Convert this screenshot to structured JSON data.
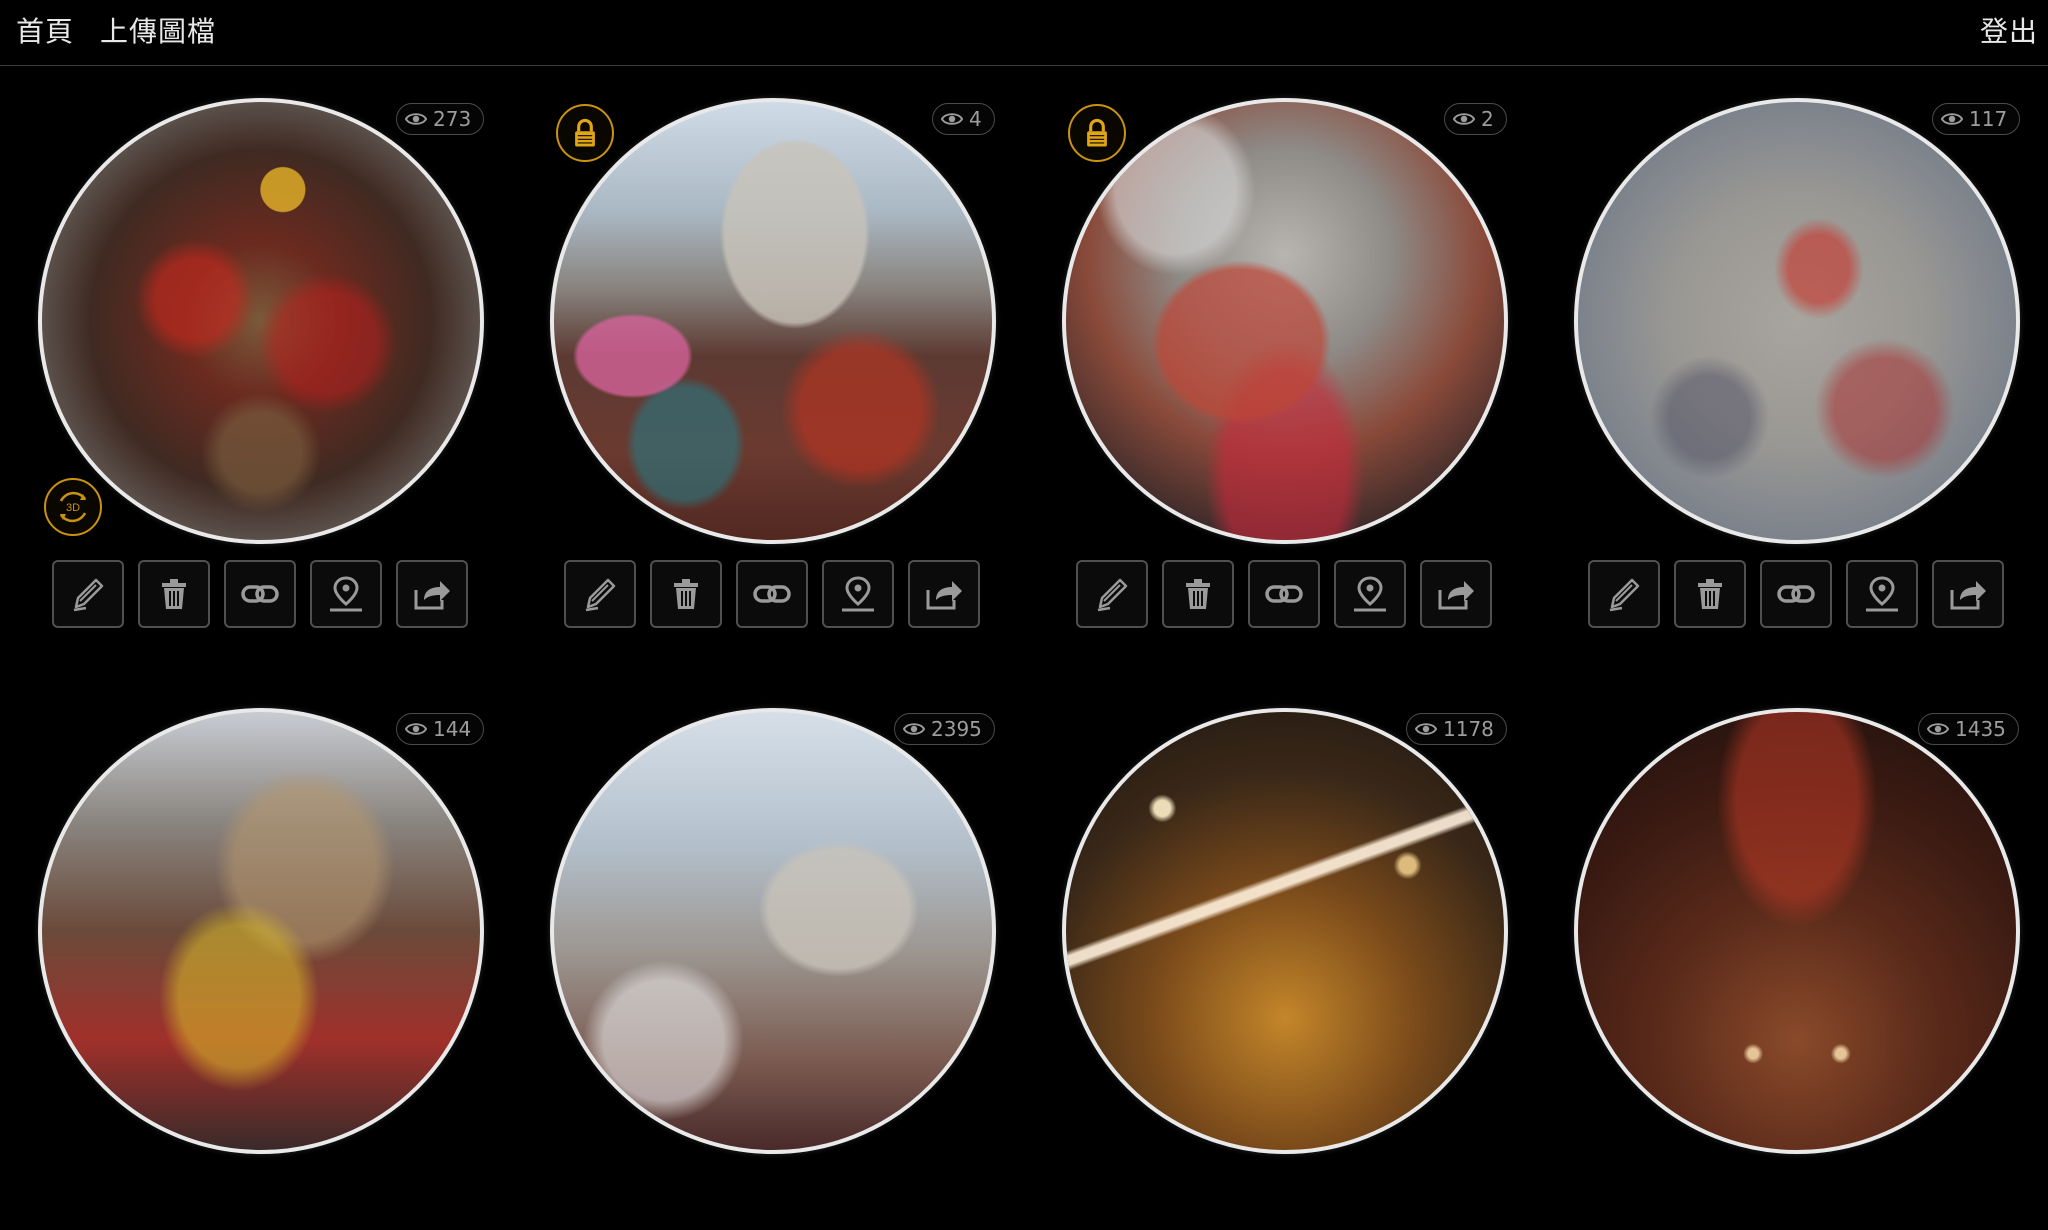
{
  "nav": {
    "home": "首頁",
    "upload": "上傳圖檔",
    "logout": "登出"
  },
  "photos": [
    {
      "views": "273",
      "locked": false,
      "is3d": true,
      "theme": "parade-topdown"
    },
    {
      "views": "4",
      "locked": true,
      "is3d": false,
      "theme": "street-buildings"
    },
    {
      "views": "2",
      "locked": true,
      "is3d": false,
      "theme": "firecracker-crowd"
    },
    {
      "views": "117",
      "locked": false,
      "is3d": false,
      "theme": "smoke-procession"
    },
    {
      "views": "144",
      "locked": false,
      "is3d": false,
      "theme": "temple-crowd"
    },
    {
      "views": "2395",
      "locked": false,
      "is3d": false,
      "theme": "street-smoke"
    },
    {
      "views": "1178",
      "locked": false,
      "is3d": false,
      "theme": "temple-interior-lights"
    },
    {
      "views": "1435",
      "locked": false,
      "is3d": false,
      "theme": "temple-hall"
    }
  ],
  "badge_3d_label": "3D",
  "actions": [
    "edit-button",
    "delete-button",
    "link-button",
    "location-button",
    "share-button"
  ],
  "colors": {
    "accent": "#c9930f",
    "border": "#e9e9e9",
    "button_border": "#505050"
  }
}
